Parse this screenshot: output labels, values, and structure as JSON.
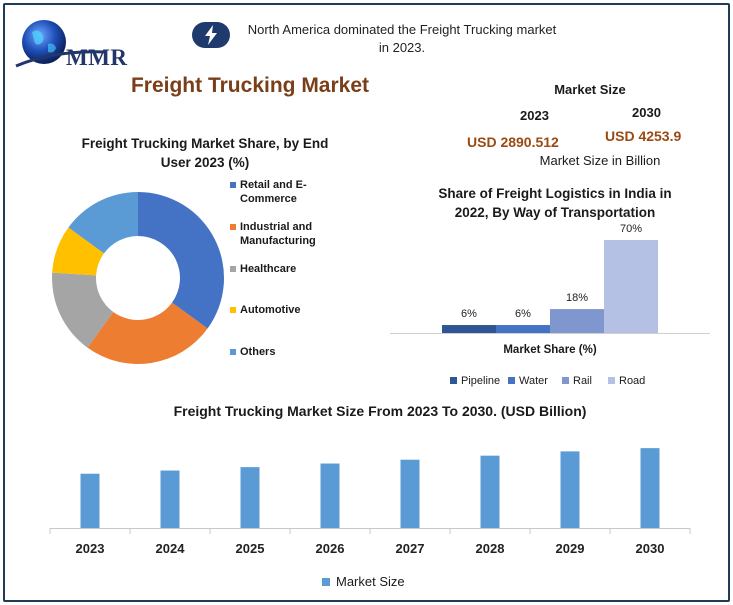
{
  "header": {
    "logo_text": "MMR",
    "insight_icon": "lightning-bolt-icon",
    "insight_line1": "North America dominated the Freight Trucking market",
    "insight_line2": "in 2023."
  },
  "main_title": "Freight Trucking Market",
  "market_size": {
    "title": "Market Size",
    "year_start": "2023",
    "year_end": "2030",
    "value_start": "USD 2890.512",
    "value_end": "USD 4253.9",
    "unit_label": "Market Size in Billion"
  },
  "colors": {
    "accent_title": "#7a3e19",
    "value_brown": "#9a4a12",
    "frame": "#1f3b57"
  },
  "chart_data": [
    {
      "type": "pie",
      "donut": true,
      "title_line1": "Freight Trucking Market Share, by End",
      "title_line2": "User  2023 (%)",
      "slices": [
        {
          "label": "Retail and E-Commerce",
          "value": 35,
          "color": "#4472c4"
        },
        {
          "label": "Industrial and Manufacturing",
          "value": 25,
          "color": "#ed7d31"
        },
        {
          "label": "Healthcare",
          "value": 16,
          "color": "#a5a5a5"
        },
        {
          "label": "Automotive",
          "value": 9,
          "color": "#ffc000"
        },
        {
          "label": "Others",
          "value": 15,
          "color": "#5b9bd5"
        }
      ],
      "legend_items": [
        {
          "line1": "Retail and E-Commerce",
          "line2": ""
        },
        {
          "line1": "Industrial and",
          "line2": "Manufacturing"
        },
        {
          "line1": "Healthcare",
          "line2": ""
        },
        {
          "line1": "Automotive",
          "line2": ""
        },
        {
          "line1": "Others",
          "line2": ""
        }
      ],
      "legend_position": "right"
    },
    {
      "type": "bar",
      "title_line1": "Share of Freight Logistics in India in",
      "title_line2": "2022, By Way of Transportation",
      "xlabel": "Market Share (%)",
      "series": [
        {
          "name": "Pipeline",
          "value": 6,
          "label": "6%",
          "color": "#2f5597"
        },
        {
          "name": "Water",
          "value": 6,
          "label": "6%",
          "color": "#4472c4"
        },
        {
          "name": "Rail",
          "value": 18,
          "label": "18%",
          "color": "#7f96cf"
        },
        {
          "name": "Road",
          "value": 70,
          "label": "70%",
          "color": "#b4c0e4"
        }
      ],
      "ylim": [
        0,
        70
      ],
      "legend_position": "bottom"
    },
    {
      "type": "bar",
      "title": "Freight Trucking Market Size From 2023 To 2030. (USD Billion)",
      "categories": [
        "2023",
        "2024",
        "2025",
        "2026",
        "2027",
        "2028",
        "2029",
        "2030"
      ],
      "series": [
        {
          "name": "Market  Size",
          "values": [
            2890.5,
            3061,
            3242,
            3434,
            3637,
            3852,
            4080,
            4253.9
          ],
          "color": "#5b9bd5"
        }
      ],
      "ylim": [
        0,
        4900
      ],
      "grid": false,
      "legend_position": "bottom"
    }
  ]
}
